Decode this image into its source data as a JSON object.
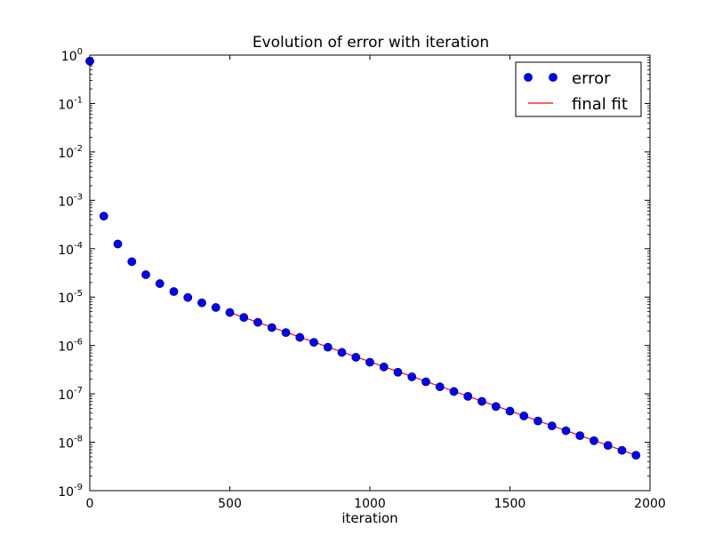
{
  "chart_data": {
    "type": "scatter",
    "title": "Evolution of error with iteration",
    "xlabel": "iteration",
    "ylabel": "",
    "xlim": [
      0,
      2000
    ],
    "ylim": [
      1e-09,
      1
    ],
    "yscale": "log",
    "grid": false,
    "legend": {
      "placement": "top-right",
      "entries": [
        "error",
        "final fit"
      ]
    },
    "x_ticks": [
      {
        "value": 0,
        "label": "0"
      },
      {
        "value": 500,
        "label": "500"
      },
      {
        "value": 1000,
        "label": "1000"
      },
      {
        "value": 1500,
        "label": "1500"
      },
      {
        "value": 2000,
        "label": "2000"
      }
    ],
    "y_ticks": [
      {
        "value": 1e-09,
        "base": "10",
        "exp": "-9"
      },
      {
        "value": 1e-08,
        "base": "10",
        "exp": "-8"
      },
      {
        "value": 1e-07,
        "base": "10",
        "exp": "-7"
      },
      {
        "value": 1e-06,
        "base": "10",
        "exp": "-6"
      },
      {
        "value": 1e-05,
        "base": "10",
        "exp": "-5"
      },
      {
        "value": 0.0001,
        "base": "10",
        "exp": "-4"
      },
      {
        "value": 0.001,
        "base": "10",
        "exp": "-3"
      },
      {
        "value": 0.01,
        "base": "10",
        "exp": "-2"
      },
      {
        "value": 0.1,
        "base": "10",
        "exp": "-1"
      },
      {
        "value": 1,
        "base": "10",
        "exp": "0"
      }
    ],
    "series": [
      {
        "name": "error",
        "kind": "markers",
        "color": "#0000ff",
        "edge_color": "#000080",
        "points": [
          [
            0,
            0.75
          ],
          [
            50,
            0.00047
          ],
          [
            100,
            0.000125
          ],
          [
            150,
            5.4e-05
          ],
          [
            200,
            2.9e-05
          ],
          [
            250,
            1.9e-05
          ],
          [
            300,
            1.3e-05
          ],
          [
            350,
            9.8e-06
          ],
          [
            400,
            7.6e-06
          ],
          [
            450,
            6.1e-06
          ],
          [
            500,
            4.8e-06
          ],
          [
            550,
            3.8e-06
          ],
          [
            600,
            3e-06
          ],
          [
            650,
            2.35e-06
          ],
          [
            700,
            1.85e-06
          ],
          [
            750,
            1.47e-06
          ],
          [
            800,
            1.16e-06
          ],
          [
            850,
            9.2e-07
          ],
          [
            900,
            7.2e-07
          ],
          [
            950,
            5.7e-07
          ],
          [
            1000,
            4.5e-07
          ],
          [
            1050,
            3.6e-07
          ],
          [
            1100,
            2.8e-07
          ],
          [
            1150,
            2.25e-07
          ],
          [
            1200,
            1.78e-07
          ],
          [
            1250,
            1.4e-07
          ],
          [
            1300,
            1.12e-07
          ],
          [
            1350,
            8.9e-08
          ],
          [
            1400,
            7e-08
          ],
          [
            1450,
            5.5e-08
          ],
          [
            1500,
            4.4e-08
          ],
          [
            1550,
            3.5e-08
          ],
          [
            1600,
            2.75e-08
          ],
          [
            1650,
            2.18e-08
          ],
          [
            1700,
            1.73e-08
          ],
          [
            1750,
            1.37e-08
          ],
          [
            1800,
            1.08e-08
          ],
          [
            1850,
            8.6e-09
          ],
          [
            1900,
            6.8e-09
          ],
          [
            1950,
            5.4e-09
          ]
        ]
      },
      {
        "name": "final fit",
        "kind": "line",
        "color": "#ff0000",
        "points": [
          [
            500,
            4.8e-06
          ],
          [
            1950,
            5.4e-09
          ]
        ]
      }
    ]
  }
}
